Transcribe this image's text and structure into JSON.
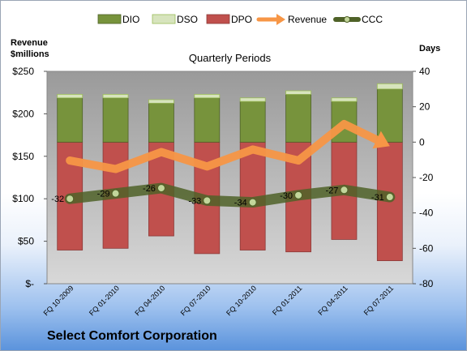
{
  "chart_data": {
    "type": "bar",
    "title": "Quarterly Periods",
    "subtitle": "Select Comfort Corporation",
    "ylabel_left": "Revenue\n$millions",
    "ylabel_right": "Days",
    "categories": [
      "FQ 10-2009",
      "FQ 01-2010",
      "FQ 04-2010",
      "FQ 07-2010",
      "FQ 10-2010",
      "FQ 01-2011",
      "FQ 04-2011",
      "FQ 07-2011"
    ],
    "left_axis": {
      "range": [
        0,
        250
      ],
      "ticks": [
        0,
        50,
        100,
        150,
        200,
        250
      ],
      "tick_labels": [
        "$-",
        "$50",
        "$100",
        "$150",
        "$200",
        "$250"
      ]
    },
    "right_axis": {
      "range": [
        -80,
        40
      ],
      "ticks": [
        -80,
        -60,
        -40,
        -20,
        0,
        20,
        40
      ],
      "tick_labels": [
        "-80",
        "-60",
        "-40",
        "-20",
        "0",
        "20",
        "40"
      ]
    },
    "series": [
      {
        "name": "DIO",
        "axis": "right",
        "kind": "stacked-bar",
        "color": "#77933c",
        "values": [
          25,
          25,
          22,
          25,
          23,
          27,
          23,
          30
        ]
      },
      {
        "name": "DSO",
        "axis": "right",
        "kind": "stacked-bar",
        "color": "#d7e4bd",
        "values": [
          2,
          2,
          2,
          2,
          2,
          2,
          2,
          3
        ]
      },
      {
        "name": "DPO",
        "axis": "right",
        "kind": "negative-bar",
        "color": "#c0504d",
        "values": [
          -61,
          -60,
          -53,
          -63,
          -61,
          -62,
          -55,
          -67
        ]
      },
      {
        "name": "Revenue",
        "axis": "left",
        "kind": "line",
        "color": "#f79646",
        "values": [
          145,
          135,
          155,
          138,
          158,
          145,
          188,
          162
        ]
      },
      {
        "name": "CCC",
        "axis": "right",
        "kind": "line",
        "color": "#4f6228",
        "values": [
          -32,
          -29,
          -26,
          -33,
          -34,
          -30,
          -27,
          -31
        ],
        "labels": [
          "-32",
          "-29",
          "-26",
          "-33",
          "-34",
          "-30",
          "-27",
          "-31"
        ]
      }
    ],
    "legend": {
      "position": "top"
    },
    "grid": false
  }
}
